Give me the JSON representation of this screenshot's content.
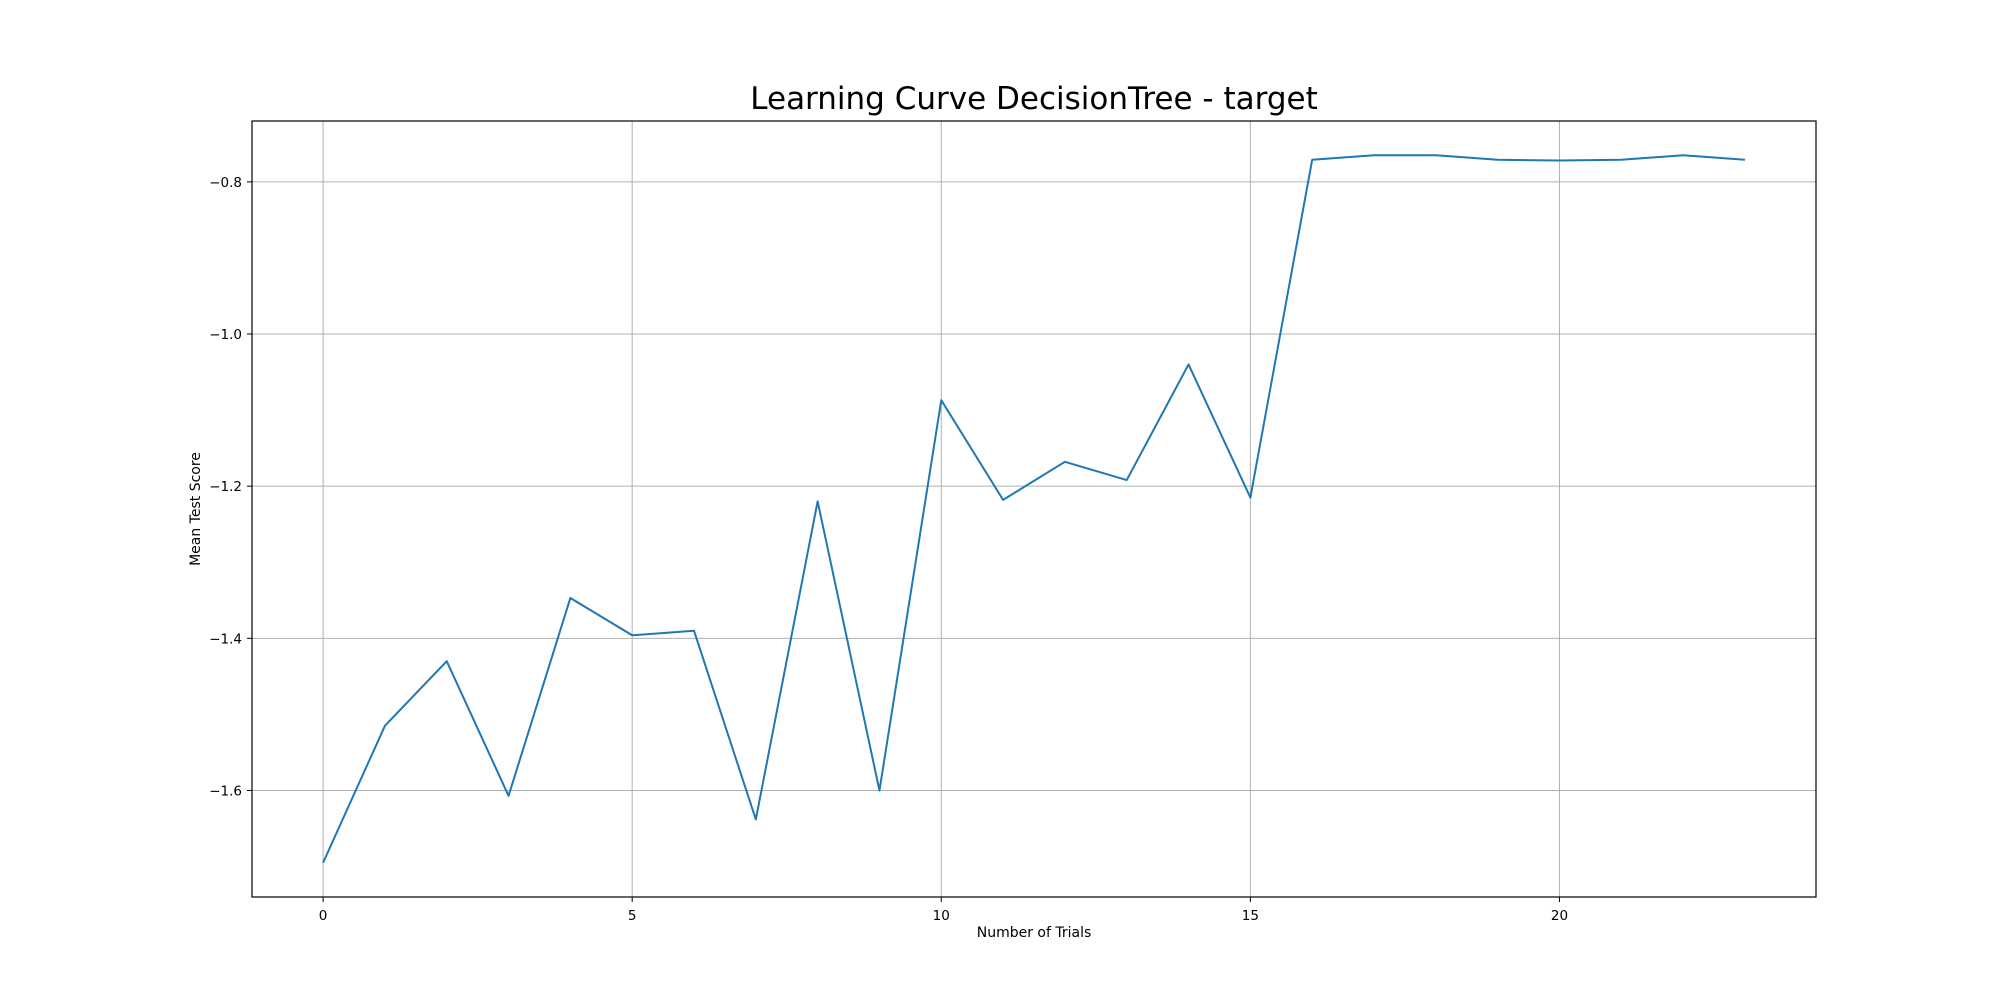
{
  "chart_data": {
    "type": "line",
    "title": "Learning Curve DecisionTree - target",
    "xlabel": "Number of Trials",
    "ylabel": "Mean Test Score",
    "xlim": [
      -1.15,
      24.15
    ],
    "ylim": [
      -1.74,
      -0.72
    ],
    "x_ticks": [
      0,
      5,
      10,
      15,
      20
    ],
    "x_tick_labels": [
      "0",
      "5",
      "10",
      "15",
      "20"
    ],
    "y_ticks": [
      -1.6,
      -1.4,
      -1.2,
      -1.0,
      -0.8
    ],
    "y_tick_labels": [
      "−1.6",
      "−1.4",
      "−1.2",
      "−1.0",
      "−0.8"
    ],
    "grid": true,
    "series": [
      {
        "color": "#1f77b4",
        "x": [
          0,
          1,
          2,
          3,
          4,
          5,
          6,
          7,
          8,
          9,
          10,
          11,
          12,
          13,
          14,
          15,
          16,
          17,
          18,
          19,
          20,
          21,
          22,
          23
        ],
        "values": [
          -1.695,
          -1.515,
          -1.43,
          -1.607,
          -1.347,
          -1.396,
          -1.39,
          -1.638,
          -1.22,
          -1.6,
          -1.087,
          -1.218,
          -1.168,
          -1.192,
          -1.04,
          -1.215,
          -0.771,
          -0.765,
          -0.765,
          -0.771,
          -0.772,
          -0.771,
          -0.765,
          -0.771
        ]
      }
    ]
  }
}
